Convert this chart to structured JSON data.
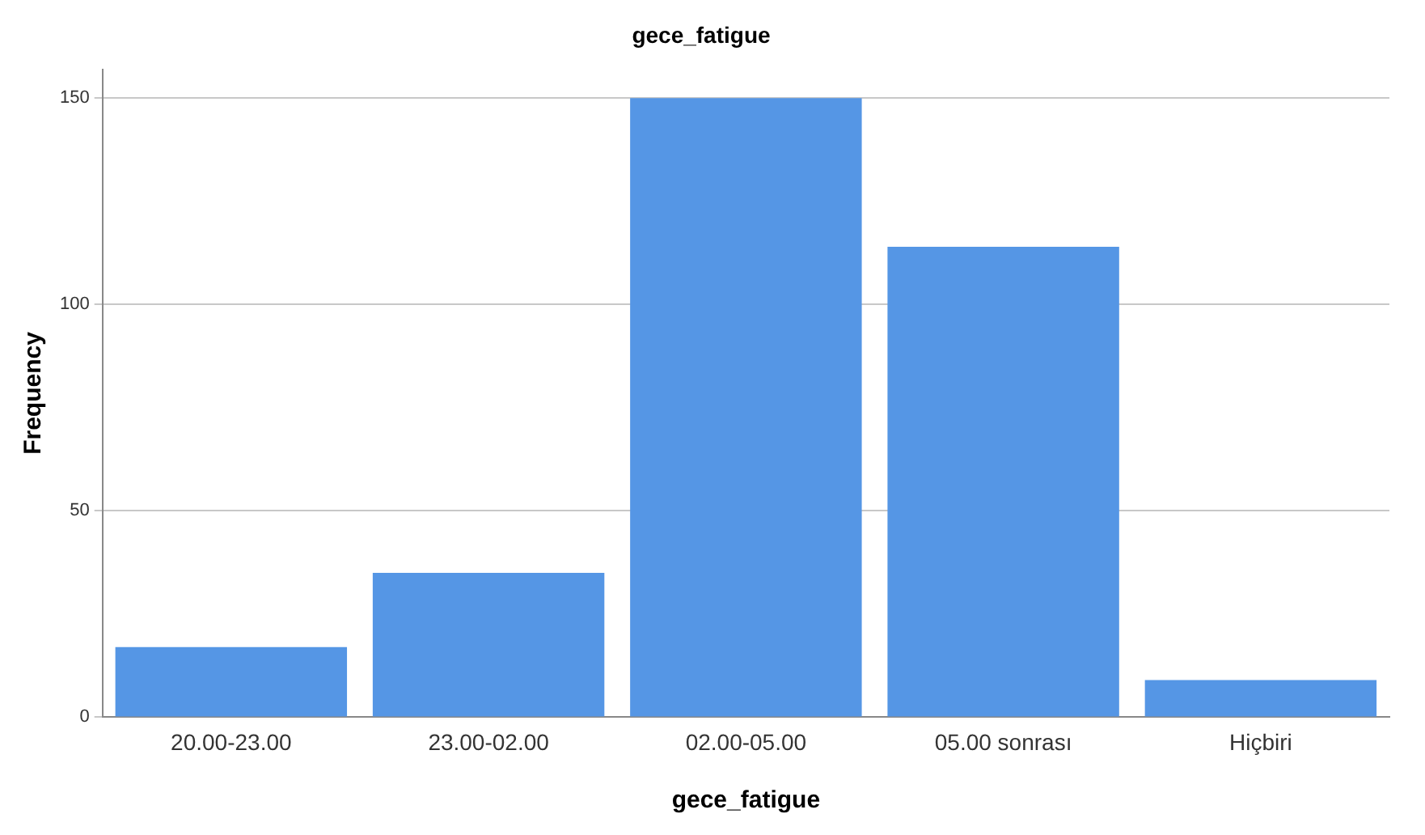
{
  "chart_data": {
    "type": "bar",
    "title": "gece_fatigue",
    "xlabel": "gece_fatigue",
    "ylabel": "Frequency",
    "categories": [
      "20.00-23.00",
      "23.00-02.00",
      "02.00-05.00",
      "05.00 sonrası",
      "Hiçbiri"
    ],
    "values": [
      17,
      35,
      150,
      114,
      9
    ],
    "color": "#5596e5",
    "ylim": [
      0,
      157
    ],
    "yticks": [
      0,
      50,
      100,
      150
    ],
    "grid": "y",
    "legend": false
  }
}
